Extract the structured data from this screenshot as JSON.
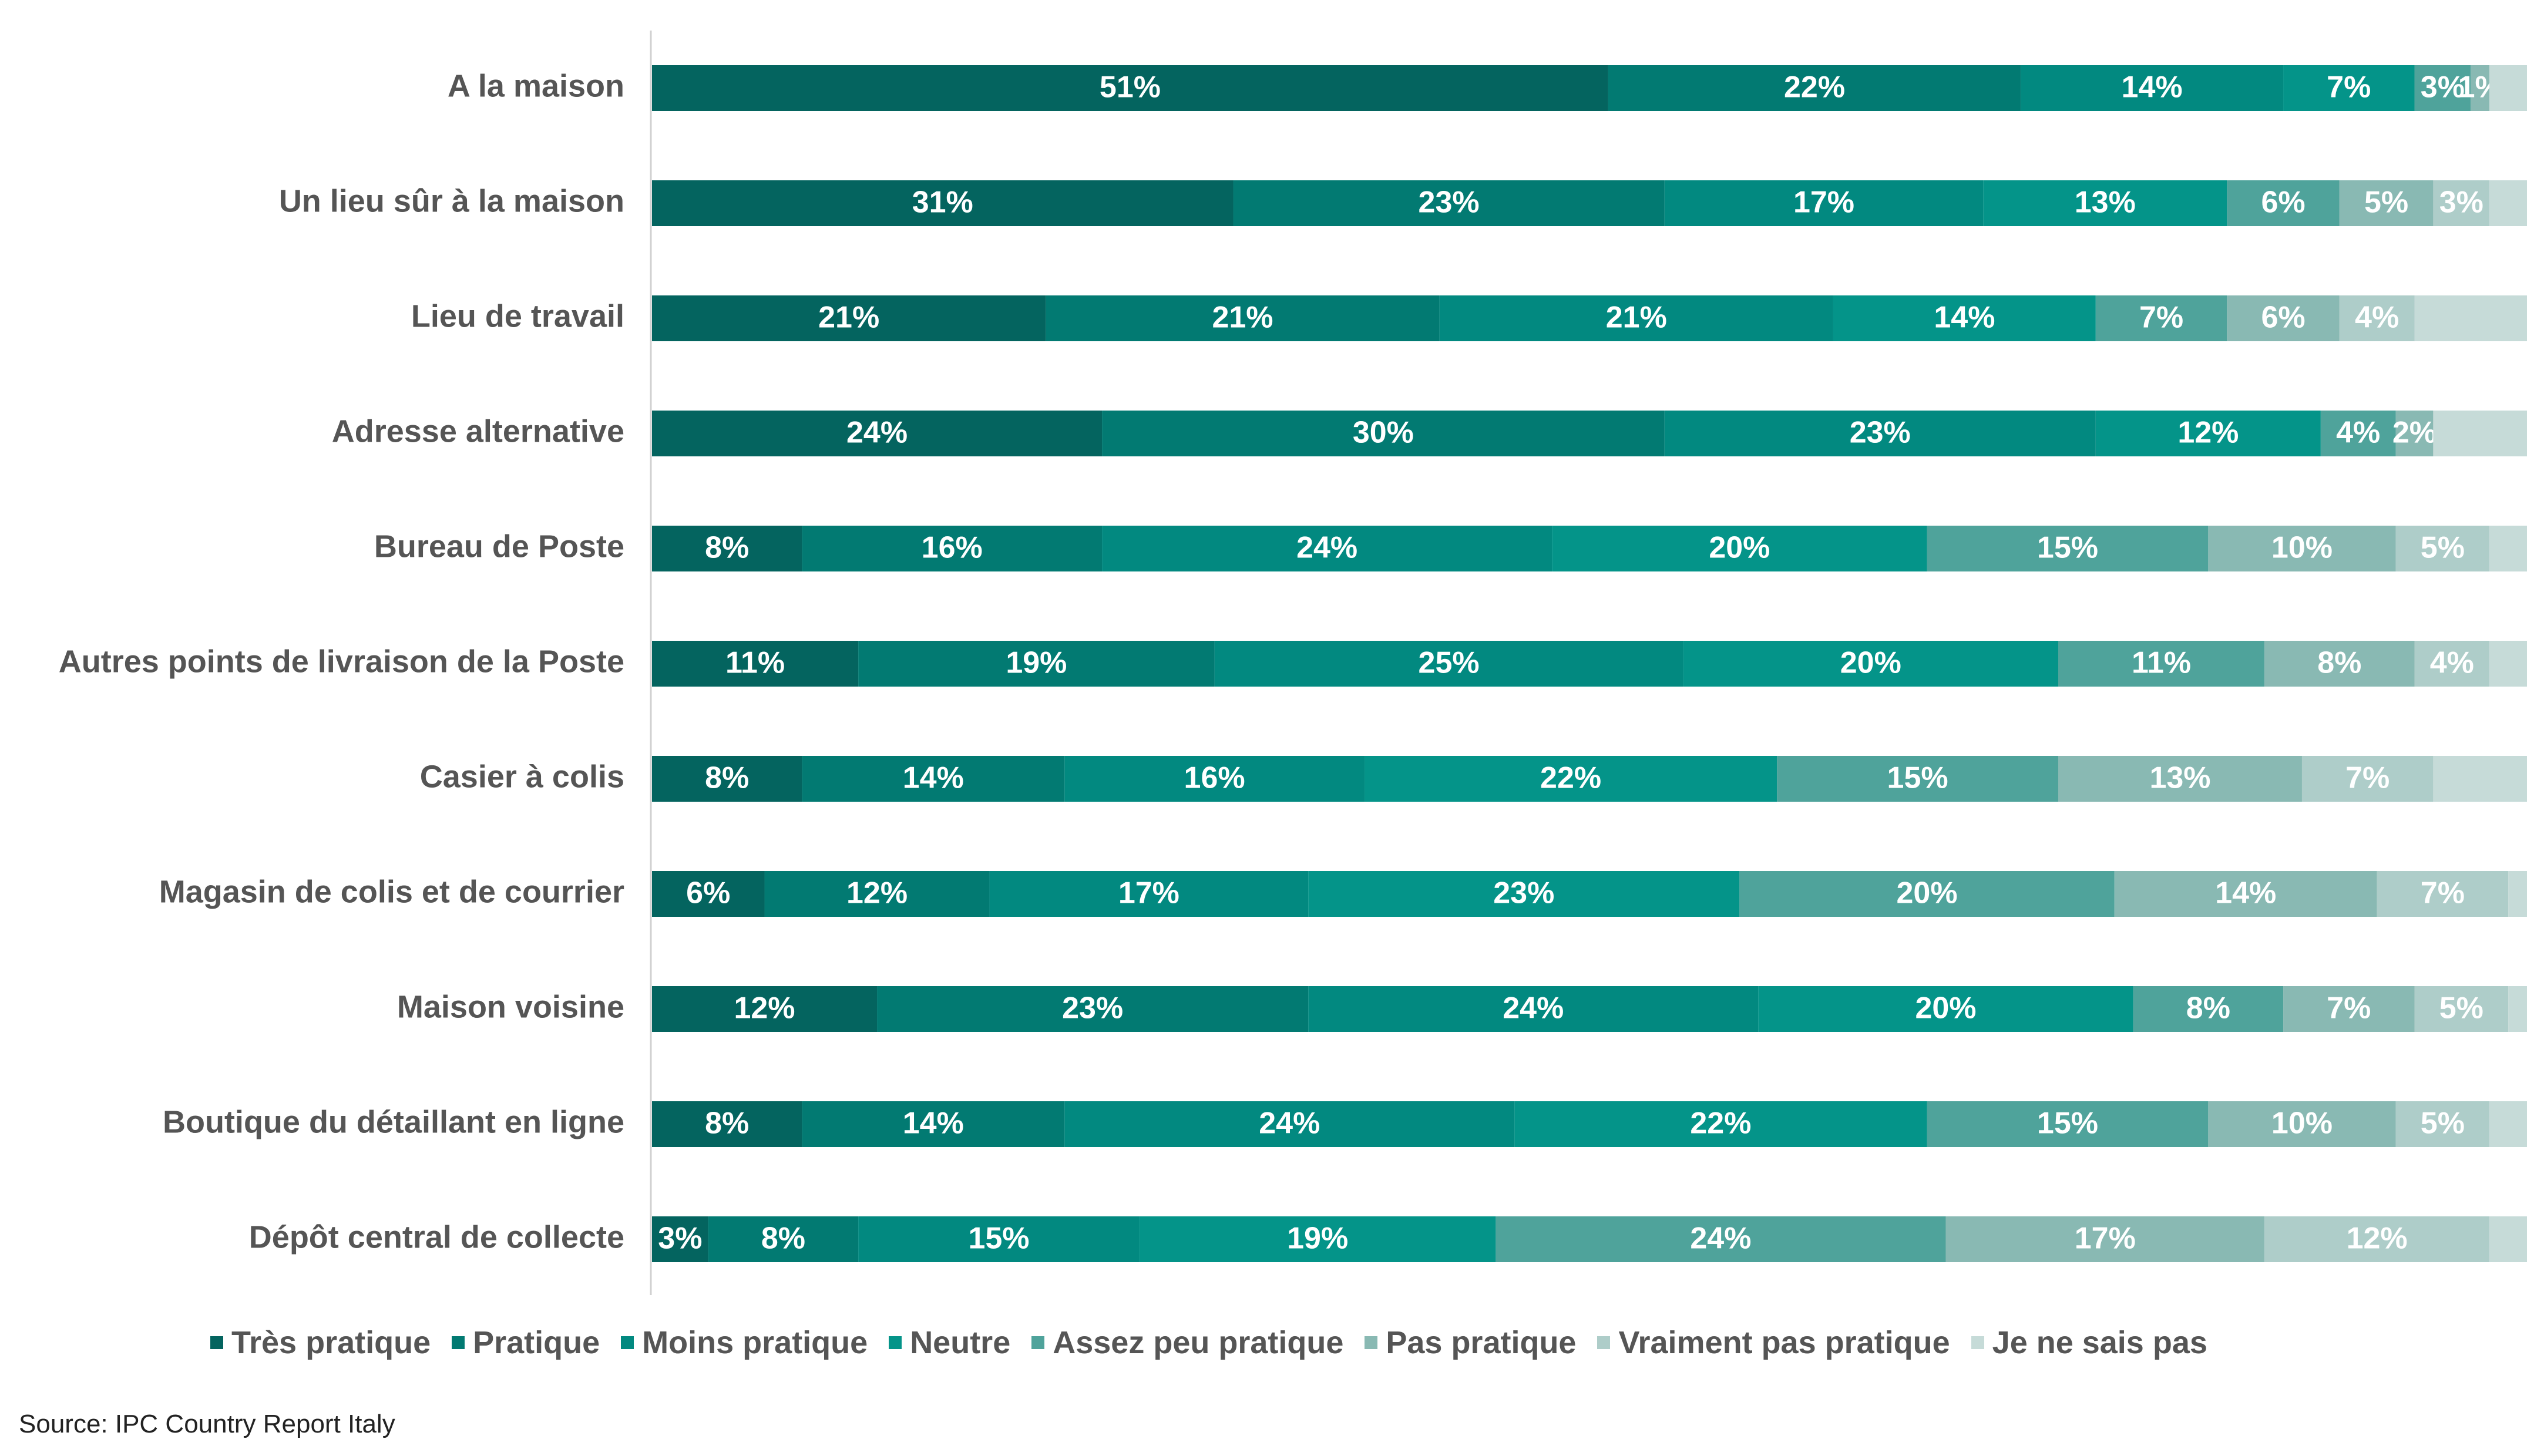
{
  "chart_data": {
    "type": "bar",
    "orientation": "horizontal-stacked-100",
    "categories": [
      "A la maison",
      "Un lieu sûr à la maison",
      "Lieu de travail",
      "Adresse alternative",
      "Bureau de Poste",
      "Autres points de livraison de la Poste",
      "Casier à colis",
      "Magasin de colis et de courrier",
      "Maison voisine",
      "Boutique du détaillant en ligne",
      "Dépôt central de collecte"
    ],
    "series": [
      {
        "name": "Très pratique",
        "color": "#04645f",
        "values": [
          51,
          31,
          21,
          24,
          8,
          11,
          8,
          6,
          12,
          8,
          3
        ]
      },
      {
        "name": "Pratique",
        "color": "#027a72",
        "values": [
          22,
          23,
          21,
          30,
          16,
          19,
          14,
          12,
          23,
          14,
          8
        ]
      },
      {
        "name": "Moins pratique",
        "color": "#028980",
        "values": [
          14,
          17,
          21,
          23,
          24,
          25,
          16,
          17,
          24,
          24,
          15
        ]
      },
      {
        "name": "Neutre",
        "color": "#049489",
        "values": [
          7,
          13,
          14,
          12,
          20,
          20,
          22,
          23,
          20,
          22,
          19
        ]
      },
      {
        "name": "Assez peu pratique",
        "color": "#4fa39b",
        "values": [
          3,
          6,
          7,
          4,
          15,
          11,
          15,
          20,
          8,
          15,
          24
        ]
      },
      {
        "name": "Pas pratique",
        "color": "#89b9b3",
        "values": [
          1,
          5,
          6,
          2,
          10,
          8,
          13,
          14,
          7,
          10,
          17
        ]
      },
      {
        "name": "Vraiment pas pratique",
        "color": "#aecdc9",
        "values": [
          null,
          3,
          4,
          null,
          5,
          4,
          7,
          7,
          5,
          5,
          12
        ]
      },
      {
        "name": "Je ne sais pas",
        "color": "#c6dbd8",
        "values": [
          null,
          null,
          null,
          null,
          null,
          null,
          null,
          null,
          null,
          null,
          null
        ]
      }
    ],
    "segment_labels": [
      [
        "51%",
        "22%",
        "14%",
        "7%",
        "3%",
        "1%",
        "",
        ""
      ],
      [
        "31%",
        "23%",
        "17%",
        "13%",
        "6%",
        "5%",
        "3%",
        ""
      ],
      [
        "21%",
        "21%",
        "21%",
        "14%",
        "7%",
        "6%",
        "4%",
        ""
      ],
      [
        "24%",
        "30%",
        "23%",
        "12%",
        "4%",
        "2%",
        "",
        ""
      ],
      [
        "8%",
        "16%",
        "24%",
        "20%",
        "15%",
        "10%",
        "5%",
        ""
      ],
      [
        "11%",
        "19%",
        "25%",
        "20%",
        "11%",
        "8%",
        "4%",
        ""
      ],
      [
        "8%",
        "14%",
        "16%",
        "22%",
        "15%",
        "13%",
        "7%",
        ""
      ],
      [
        "6%",
        "12%",
        "17%",
        "23%",
        "20%",
        "14%",
        "7%",
        ""
      ],
      [
        "12%",
        "23%",
        "24%",
        "20%",
        "8%",
        "7%",
        "5%",
        ""
      ],
      [
        "8%",
        "14%",
        "24%",
        "22%",
        "15%",
        "10%",
        "5%",
        ""
      ],
      [
        "3%",
        "8%",
        "15%",
        "19%",
        "24%",
        "17%",
        "12%",
        ""
      ]
    ],
    "xlim": [
      0,
      100
    ],
    "grid": false,
    "legend_position": "bottom"
  },
  "source": "Source: IPC Country Report Italy"
}
